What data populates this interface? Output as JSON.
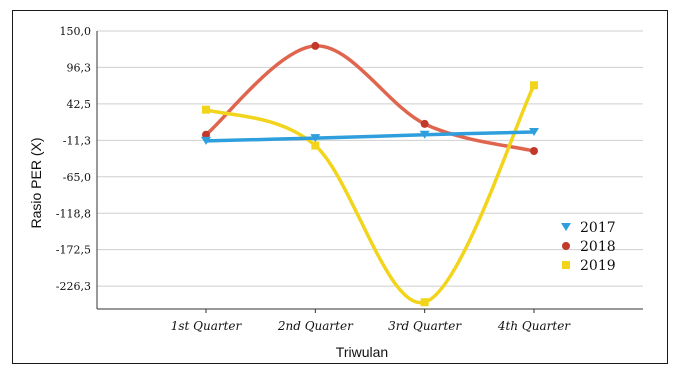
{
  "chart_data": {
    "type": "line",
    "categories": [
      "1st Quarter",
      "2nd Quarter",
      "3rd Quarter",
      "4th Quarter"
    ],
    "y_ticks": [
      "150,0",
      "96,3",
      "42,5",
      "-11,3",
      "-65,0",
      "-118,8",
      "-172,5",
      "-226,3"
    ],
    "ylim": [
      -260,
      150
    ],
    "xlabel": "Triwulan",
    "ylabel": "Rasio PER (X)",
    "grid": true,
    "legend_position": "right",
    "series": [
      {
        "name": "2017",
        "color": "#2e9fdc",
        "marker": "triangle-down",
        "values": [
          -12,
          -8,
          -3,
          1
        ]
      },
      {
        "name": "2018",
        "color": "#e0654e",
        "marker": "circle",
        "values": [
          -3,
          128,
          13,
          -27
        ]
      },
      {
        "name": "2019",
        "color": "#f2d51b",
        "marker": "square",
        "values": [
          34,
          -19,
          -250,
          70
        ]
      }
    ]
  }
}
